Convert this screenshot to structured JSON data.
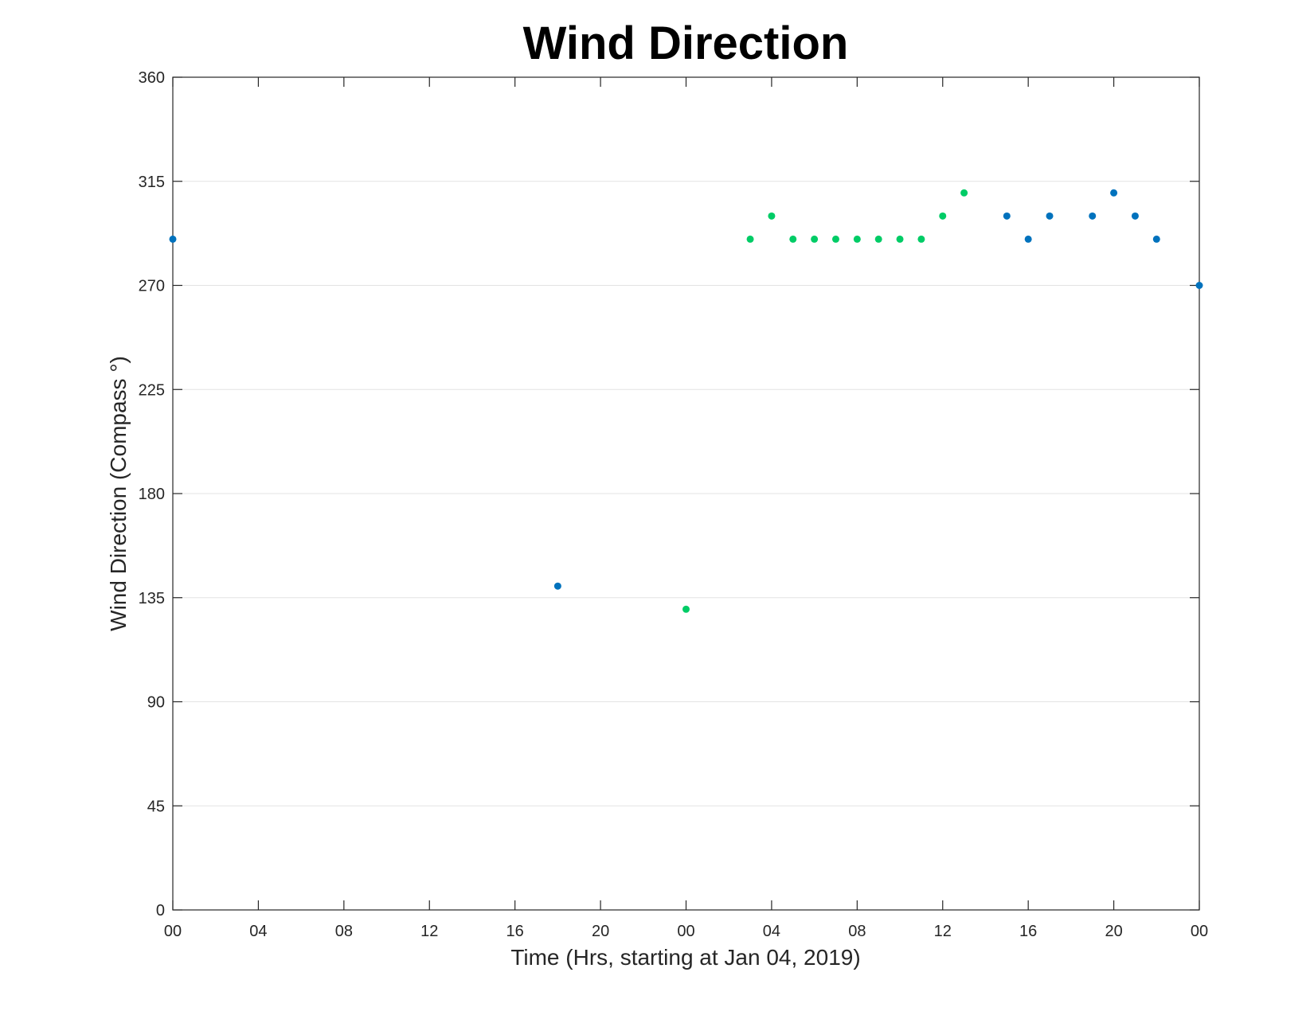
{
  "chart_data": {
    "type": "scatter",
    "title": "Wind Direction",
    "xlabel": "Time (Hrs, starting at Jan 04, 2019)",
    "ylabel": "Wind Direction (Compass °)",
    "xlim": [
      "2019-01-04 00:00",
      "2019-01-06 00:00"
    ],
    "ylim": [
      0,
      360
    ],
    "x_tick_labels": [
      "00",
      "04",
      "08",
      "12",
      "16",
      "20",
      "00",
      "04",
      "08",
      "12",
      "16",
      "20",
      "00"
    ],
    "y_tick_labels": [
      "0",
      "45",
      "90",
      "135",
      "180",
      "225",
      "270",
      "315",
      "360"
    ],
    "grid": "horizontal",
    "series": [
      {
        "color": "#0072bd",
        "points": [
          {
            "x": "2019-01-04 00:00",
            "y": 290
          },
          {
            "x": "2019-01-04 18:00",
            "y": 140
          },
          {
            "x": "2019-01-05 15:00",
            "y": 300
          },
          {
            "x": "2019-01-05 16:00",
            "y": 290
          },
          {
            "x": "2019-01-05 17:00",
            "y": 300
          },
          {
            "x": "2019-01-05 19:00",
            "y": 300
          },
          {
            "x": "2019-01-05 20:00",
            "y": 310
          },
          {
            "x": "2019-01-05 21:00",
            "y": 300
          },
          {
            "x": "2019-01-05 22:00",
            "y": 290
          },
          {
            "x": "2019-01-06 00:00",
            "y": 270
          }
        ]
      },
      {
        "color": "#00cc66",
        "points": [
          {
            "x": "2019-01-05 00:00",
            "y": 130
          },
          {
            "x": "2019-01-05 03:00",
            "y": 290
          },
          {
            "x": "2019-01-05 04:00",
            "y": 300
          },
          {
            "x": "2019-01-05 05:00",
            "y": 290
          },
          {
            "x": "2019-01-05 06:00",
            "y": 290
          },
          {
            "x": "2019-01-05 07:00",
            "y": 290
          },
          {
            "x": "2019-01-05 08:00",
            "y": 290
          },
          {
            "x": "2019-01-05 09:00",
            "y": 290
          },
          {
            "x": "2019-01-05 10:00",
            "y": 290
          },
          {
            "x": "2019-01-05 11:00",
            "y": 290
          },
          {
            "x": "2019-01-05 12:00",
            "y": 300
          },
          {
            "x": "2019-01-05 13:00",
            "y": 310
          }
        ]
      }
    ]
  }
}
